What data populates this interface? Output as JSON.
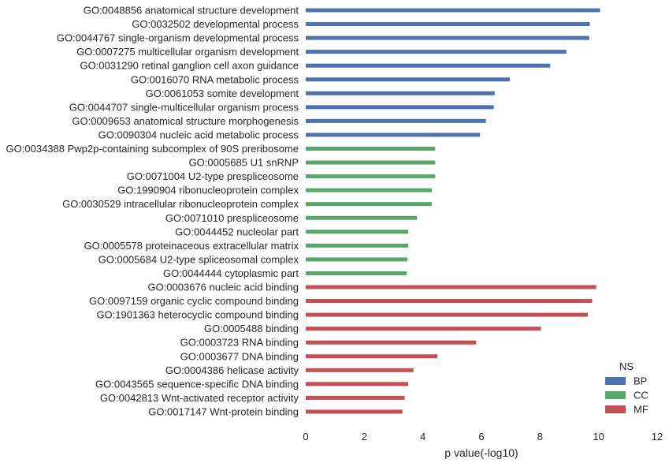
{
  "chart_data": {
    "type": "bar",
    "orientation": "horizontal",
    "xlabel": "p value(-log10)",
    "xlim": [
      0,
      12
    ],
    "xticks": [
      "0",
      "2",
      "4",
      "6",
      "8",
      "10",
      "12"
    ],
    "grid": false,
    "legend": {
      "title": "NS",
      "placement": "bottom-right",
      "entries": [
        {
          "name": "BP",
          "color": "#4c72b0"
        },
        {
          "name": "CC",
          "color": "#55a868"
        },
        {
          "name": "MF",
          "color": "#c44e52"
        }
      ]
    },
    "categories": [
      "GO:0048856 anatomical structure development",
      "GO:0032502 developmental process",
      "GO:0044767 single-organism developmental process",
      "GO:0007275 multicellular organism development",
      "GO:0031290 retinal ganglion cell axon guidance",
      "GO:0016070 RNA metabolic process",
      "GO:0061053 somite development",
      "GO:0044707 single-multicellular organism process",
      "GO:0009653 anatomical structure morphogenesis",
      "GO:0090304 nucleic acid metabolic process",
      "GO:0034388 Pwp2p-containing subcomplex of 90S preribosome",
      "GO:0005685 U1 snRNP",
      "GO:0071004 U2-type prespliceosome",
      "GO:1990904 ribonucleoprotein complex",
      "GO:0030529 intracellular ribonucleoprotein complex",
      "GO:0071010 prespliceosome",
      "GO:0044452 nucleolar part",
      "GO:0005578 proteinaceous extracellular matrix",
      "GO:0005684 U2-type spliceosomal complex",
      "GO:0044444 cytoplasmic part",
      "GO:0003676 nucleic acid binding",
      "GO:0097159 organic cyclic compound binding",
      "GO:1901363 heterocyclic compound binding",
      "GO:0005488 binding",
      "GO:0003723 RNA binding",
      "GO:0003677 DNA binding",
      "GO:0004386 helicase activity",
      "GO:0043565 sequence-specific DNA binding",
      "GO:0042813 Wnt-activated receptor activity",
      "GO:0017147 Wnt-protein binding"
    ],
    "groups": [
      "BP",
      "BP",
      "BP",
      "BP",
      "BP",
      "BP",
      "BP",
      "BP",
      "BP",
      "BP",
      "CC",
      "CC",
      "CC",
      "CC",
      "CC",
      "CC",
      "CC",
      "CC",
      "CC",
      "CC",
      "MF",
      "MF",
      "MF",
      "MF",
      "MF",
      "MF",
      "MF",
      "MF",
      "MF",
      "MF"
    ],
    "values": [
      10.05,
      9.7,
      9.68,
      8.9,
      8.35,
      6.97,
      6.45,
      6.42,
      6.15,
      5.95,
      4.42,
      4.42,
      4.42,
      4.3,
      4.3,
      3.8,
      3.5,
      3.5,
      3.47,
      3.45,
      9.92,
      9.78,
      9.63,
      8.03,
      5.82,
      4.5,
      3.68,
      3.5,
      3.38,
      3.3
    ]
  }
}
